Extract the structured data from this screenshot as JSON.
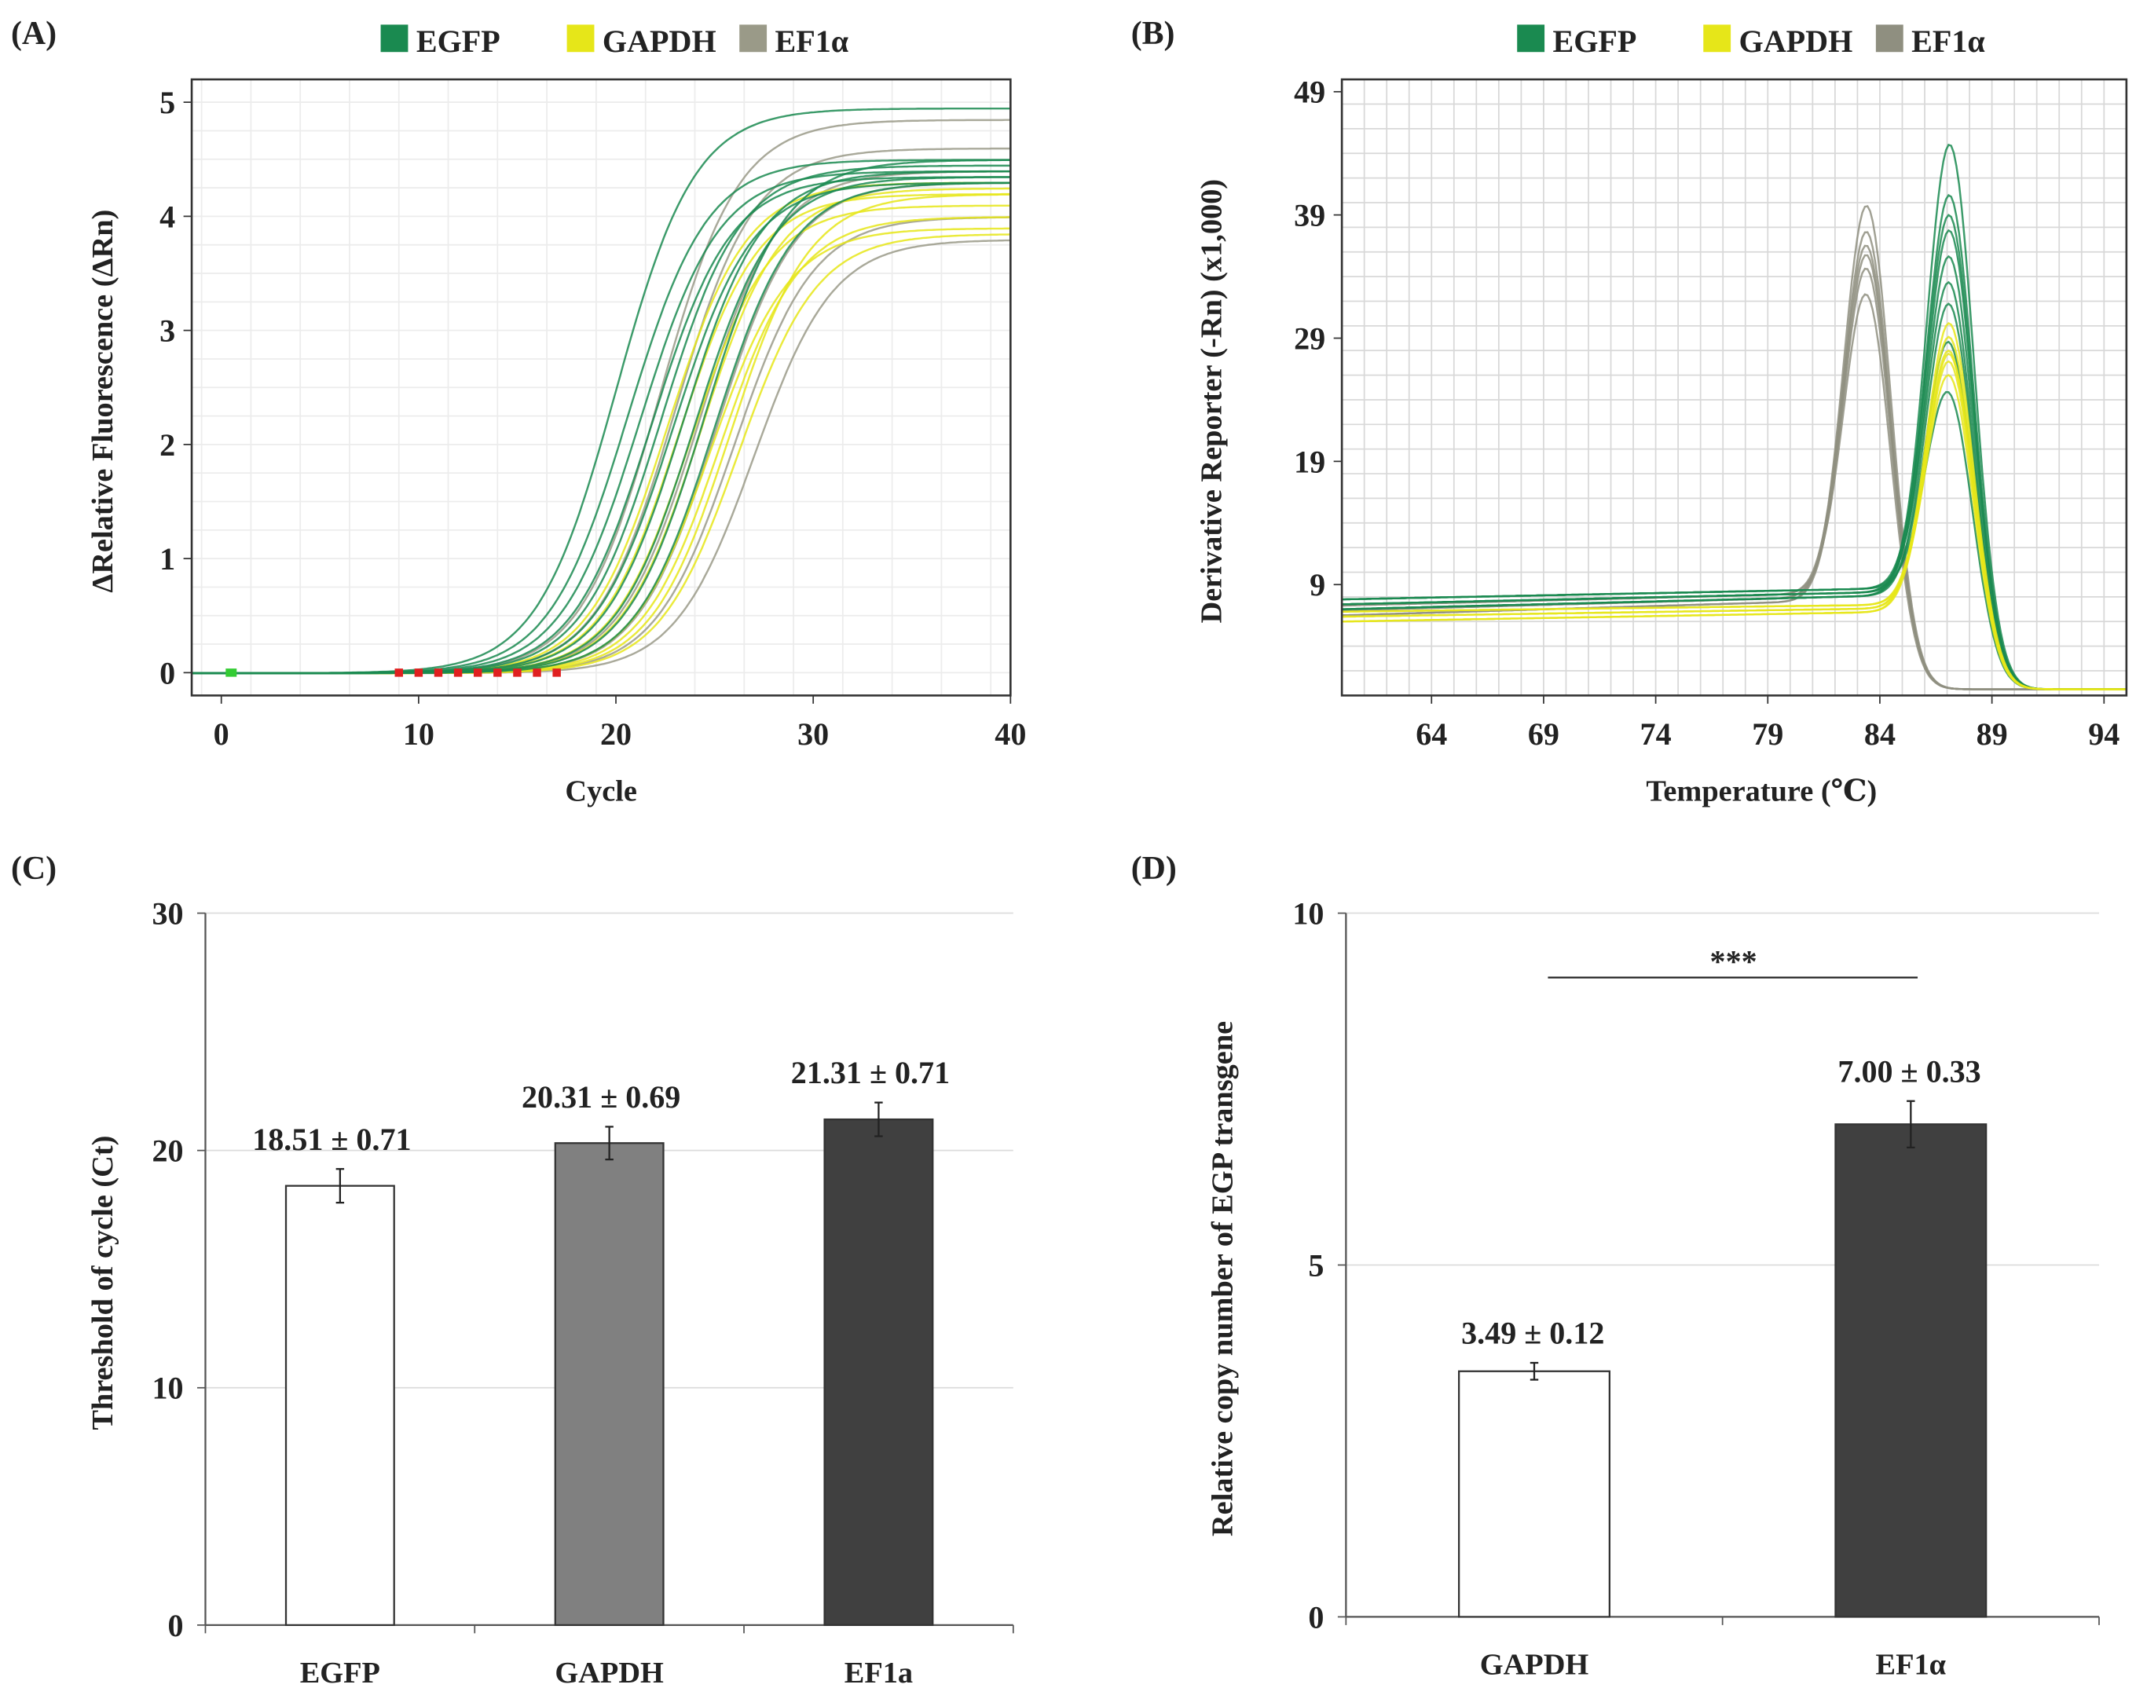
{
  "chart_data": [
    {
      "panel": "(A)",
      "type": "line",
      "xlabel": "Cycle",
      "ylabel": "ΔRelative Fluorescence (ΔRn)",
      "xlim": [
        -1.5,
        40
      ],
      "ylim": [
        -0.2,
        5.2
      ],
      "xticks": [
        "0",
        "10",
        "20",
        "30",
        "40"
      ],
      "xtick_values": [
        0,
        10,
        20,
        30,
        40
      ],
      "yticks": [
        "0",
        "1",
        "2",
        "3",
        "4",
        "5"
      ],
      "ytick_values": [
        0,
        1,
        2,
        3,
        4,
        5
      ],
      "grid": true,
      "legend": {
        "placement": "top",
        "entries": [
          "EGFP",
          "GAPDH",
          "EF1α"
        ]
      },
      "series": [
        {
          "name": "EGFP",
          "color": "#1a8a50",
          "midpoints": [
            20.0,
            20.6,
            21.2,
            21.8,
            22.3,
            22.9,
            23.4,
            24.0,
            24.5,
            25.0
          ],
          "plateaus": [
            4.95,
            4.5,
            4.4,
            4.35,
            4.45,
            4.3,
            4.4,
            4.35,
            4.5,
            4.3
          ]
        },
        {
          "name": "GAPDH",
          "color": "#e6e619",
          "midpoints": [
            22.6,
            23.2,
            23.8,
            24.3,
            24.8,
            25.3,
            25.8,
            26.2
          ],
          "plateaus": [
            4.3,
            4.2,
            4.1,
            4.25,
            3.9,
            4.0,
            4.2,
            3.85
          ]
        },
        {
          "name": "EF1α",
          "color": "#9a9a88",
          "midpoints": [
            22.2,
            23.0,
            24.2,
            25.1,
            26.0,
            27.0
          ],
          "plateaus": [
            4.85,
            4.6,
            4.4,
            4.3,
            4.0,
            3.8
          ]
        }
      ],
      "baseline_markers": {
        "start_cycles": [
          0.5
        ],
        "threshold_cycles": [
          9,
          10,
          11,
          12,
          13,
          14,
          15,
          16,
          17
        ]
      }
    },
    {
      "panel": "(B)",
      "type": "line",
      "xlabel": "Temperature (℃)",
      "ylabel": "Derivative Reporter (-Rn) (x1,000)",
      "xlim": [
        60,
        95
      ],
      "ylim": [
        0,
        50
      ],
      "xticks": [
        "64",
        "69",
        "74",
        "79",
        "84",
        "89",
        "94"
      ],
      "xtick_values": [
        64,
        69,
        74,
        79,
        84,
        89,
        94
      ],
      "yticks": [
        "9",
        "19",
        "29",
        "39",
        "49"
      ],
      "ytick_values": [
        9,
        19,
        29,
        39,
        49
      ],
      "grid": true,
      "legend": {
        "placement": "top",
        "entries": [
          "EGFP",
          "GAPDH",
          "EF1α"
        ]
      },
      "series": [
        {
          "name": "EGFP",
          "color": "#1a8a50",
          "peak_temp": 87.2,
          "peak_heights": [
            47,
            43,
            41.5,
            40,
            38,
            36,
            34,
            31,
            27
          ],
          "baseline": [
            6.5,
            7.5
          ]
        },
        {
          "name": "GAPDH",
          "color": "#e6e619",
          "peak_temp": 87.2,
          "peak_heights": [
            32,
            31,
            30,
            29.5,
            29,
            28
          ],
          "baseline": [
            5.5,
            6.2
          ]
        },
        {
          "name": "EF1α",
          "color": "#8f8f80",
          "peak_temp": 83.5,
          "peak_heights": [
            42,
            40,
            39,
            38,
            37,
            35
          ],
          "baseline": [
            6.0,
            7.2
          ]
        }
      ]
    },
    {
      "panel": "(C)",
      "type": "bar",
      "categories": [
        "EGFP",
        "GAPDH",
        "EF1a"
      ],
      "values": [
        18.51,
        20.31,
        21.31
      ],
      "errors": [
        0.71,
        0.69,
        0.71
      ],
      "value_labels": [
        "18.51 ± 0.71",
        "20.31 ± 0.69",
        "21.31 ± 0.71"
      ],
      "colors": [
        "#ffffff",
        "#808080",
        "#404040"
      ],
      "ylabel": "Threshold of cycle (Ct)",
      "xlabel": "",
      "ylim": [
        0,
        30
      ],
      "yticks": [
        "0",
        "10",
        "20",
        "30"
      ],
      "ytick_values": [
        0,
        10,
        20,
        30
      ],
      "grid": true
    },
    {
      "panel": "(D)",
      "type": "bar",
      "categories": [
        "GAPDH",
        "EF1α"
      ],
      "values": [
        3.49,
        7.0
      ],
      "errors": [
        0.12,
        0.33
      ],
      "value_labels": [
        "3.49 ± 0.12",
        "7.00 ± 0.33"
      ],
      "colors": [
        "#ffffff",
        "#404040"
      ],
      "ylabel": "Relative copy number of EGP transgene",
      "xlabel": "",
      "ylim": [
        0,
        10
      ],
      "yticks": [
        "0",
        "5",
        "10"
      ],
      "ytick_values": [
        0,
        5,
        10
      ],
      "grid": true,
      "significance": {
        "label": "***",
        "between": [
          "GAPDH",
          "EF1α"
        ]
      }
    }
  ]
}
